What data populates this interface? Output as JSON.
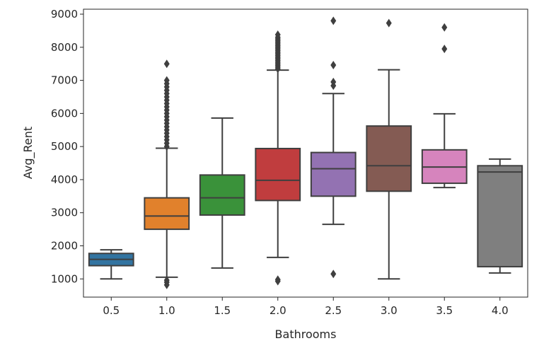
{
  "chart_data": {
    "type": "box",
    "title": "",
    "xlabel": "Bathrooms",
    "ylabel": "Avg_Rent",
    "ylim": [
      450,
      9150
    ],
    "yticks": [
      1000,
      2000,
      3000,
      4000,
      5000,
      6000,
      7000,
      8000,
      9000
    ],
    "ytick_labels": [
      "1000",
      "2000",
      "3000",
      "4000",
      "5000",
      "6000",
      "7000",
      "8000",
      "9000"
    ],
    "grid": false,
    "categories": [
      "0.5",
      "1.0",
      "1.5",
      "2.0",
      "2.5",
      "3.0",
      "3.5",
      "4.0"
    ],
    "boxes": [
      {
        "category": "0.5",
        "color": "#3274a1",
        "whisker_low": 1000,
        "q1": 1400,
        "median": 1590,
        "q3": 1770,
        "whisker_high": 1880,
        "outliers": []
      },
      {
        "category": "1.0",
        "color": "#e1812c",
        "whisker_low": 1050,
        "q1": 2500,
        "median": 2900,
        "q3": 3450,
        "whisker_high": 4950,
        "outliers": [
          820,
          900,
          960,
          5000,
          5100,
          5200,
          5300,
          5400,
          5500,
          5600,
          5700,
          5800,
          5900,
          6000,
          6100,
          6200,
          6300,
          6400,
          6500,
          6600,
          6700,
          6800,
          6900,
          7000,
          7500
        ]
      },
      {
        "category": "1.5",
        "color": "#3a923a",
        "whisker_low": 1330,
        "q1": 2930,
        "median": 3450,
        "q3": 4140,
        "whisker_high": 5860,
        "outliers": []
      },
      {
        "category": "2.0",
        "color": "#c03d3e",
        "whisker_low": 1650,
        "q1": 3370,
        "median": 3980,
        "q3": 4940,
        "whisker_high": 7310,
        "outliers": [
          930,
          980,
          7350,
          7400,
          7450,
          7500,
          7550,
          7600,
          7650,
          7700,
          7750,
          7800,
          7850,
          7900,
          7950,
          8000,
          8050,
          8100,
          8150,
          8200,
          8250,
          8300,
          8380
        ]
      },
      {
        "category": "2.5",
        "color": "#9372b2",
        "whisker_low": 2650,
        "q1": 3500,
        "median": 4330,
        "q3": 4820,
        "whisker_high": 6600,
        "outliers": [
          1150,
          6840,
          6950,
          7460,
          8800
        ]
      },
      {
        "category": "3.0",
        "color": "#845b53",
        "whisker_low": 1000,
        "q1": 3650,
        "median": 4420,
        "q3": 5620,
        "whisker_high": 7320,
        "outliers": [
          8730
        ]
      },
      {
        "category": "3.5",
        "color": "#d684bd",
        "whisker_low": 3760,
        "q1": 3890,
        "median": 4380,
        "q3": 4900,
        "whisker_high": 5990,
        "outliers": [
          7950,
          8600
        ]
      },
      {
        "category": "4.0",
        "color": "#7f7f7f",
        "whisker_low": 1180,
        "q1": 1370,
        "median": 4230,
        "q3": 4420,
        "whisker_high": 4620,
        "outliers": []
      }
    ]
  }
}
